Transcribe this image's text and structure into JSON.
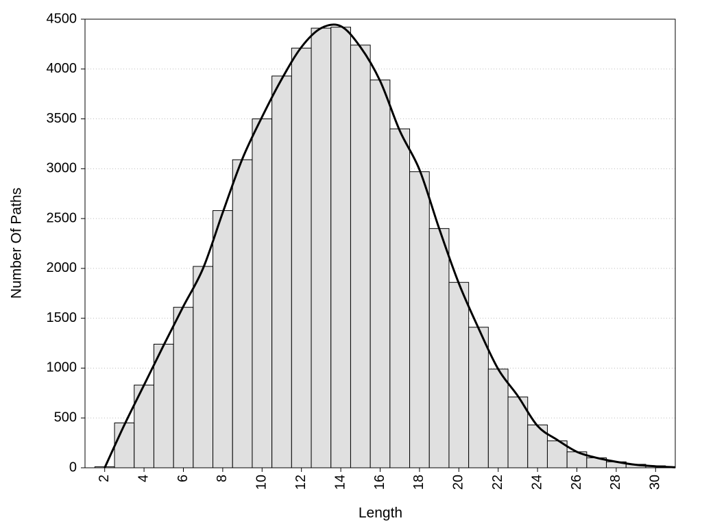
{
  "chart_data": {
    "type": "histogram",
    "x_label": "Length",
    "y_label": "Number Of Paths",
    "bins": [
      1.5,
      2.5,
      3.5,
      4.5,
      5.5,
      6.5,
      7.5,
      8.5,
      9.5,
      10.5,
      11.5,
      12.5,
      13.5,
      14.5,
      15.5,
      16.5,
      17.5,
      18.5,
      19.5,
      20.5,
      21.5,
      22.5,
      23.5,
      24.5,
      25.5,
      26.5,
      27.5,
      28.5,
      29.5,
      30.5
    ],
    "counts": [
      10,
      450,
      830,
      1240,
      1610,
      2020,
      2580,
      3090,
      3500,
      3930,
      4210,
      4410,
      4420,
      4240,
      3890,
      3400,
      2970,
      2400,
      1860,
      1410,
      990,
      710,
      430,
      270,
      160,
      100,
      60,
      35,
      20
    ],
    "bar_color": "#e0e0e0",
    "curve": {
      "color": "#000000",
      "x": [
        2,
        3,
        4,
        5,
        6,
        7,
        8,
        9,
        10,
        11,
        12,
        13,
        14,
        15,
        16,
        17,
        18,
        19,
        20,
        21,
        22,
        23,
        24,
        25,
        26,
        27,
        28,
        29,
        30,
        31
      ],
      "values": [
        0,
        430,
        830,
        1230,
        1620,
        2000,
        2560,
        3100,
        3520,
        3900,
        4220,
        4410,
        4430,
        4220,
        3880,
        3380,
        2990,
        2400,
        1850,
        1400,
        990,
        720,
        420,
        280,
        160,
        100,
        60,
        30,
        15,
        5
      ]
    },
    "xlim": [
      1,
      31
    ],
    "ylim": [
      0,
      4500
    ],
    "xticks": [
      2,
      4,
      6,
      8,
      10,
      12,
      14,
      16,
      18,
      20,
      22,
      24,
      26,
      28,
      30
    ],
    "yticks": [
      0,
      500,
      1000,
      1500,
      2000,
      2500,
      3000,
      3500,
      4000,
      4500
    ],
    "grid": true
  }
}
